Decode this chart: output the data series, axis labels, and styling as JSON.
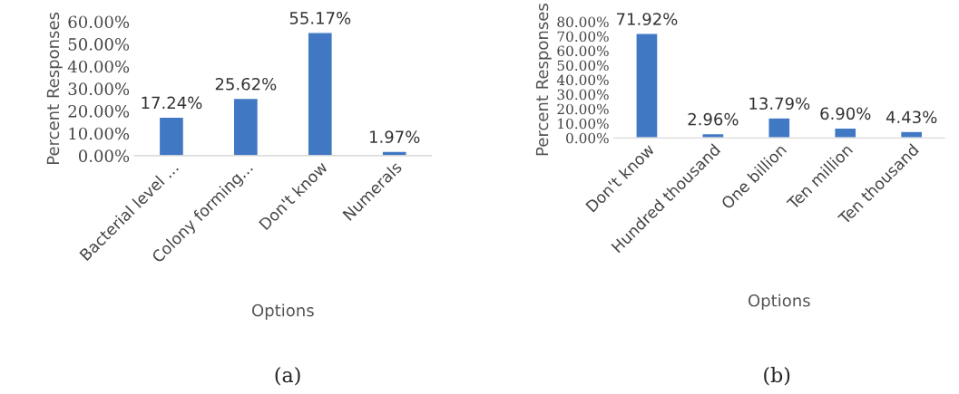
{
  "chart_data": [
    {
      "type": "bar",
      "categories": [
        "Bacterial level ...",
        "Colony forming...",
        "Don't know",
        "Numerals"
      ],
      "values": [
        17.24,
        25.62,
        55.17,
        1.97
      ],
      "color": "#4078c4",
      "value_labels": [
        "17.24%",
        "25.62%",
        "55.17%",
        "1.97%"
      ],
      "xlabel": "Options",
      "ylabel": "Percent Responses",
      "ylim": [
        0,
        60
      ],
      "yticks": [
        {
          "value": 0,
          "label": "0.00%"
        },
        {
          "value": 10,
          "label": "10.00%"
        },
        {
          "value": 20,
          "label": "20.00%"
        },
        {
          "value": 30,
          "label": "30.00%"
        },
        {
          "value": 40,
          "label": "40.00%"
        },
        {
          "value": 50,
          "label": "50.00%"
        },
        {
          "value": 60,
          "label": "60.00%"
        }
      ],
      "grid": false,
      "legend": false,
      "annotations": [
        "(a)"
      ]
    },
    {
      "type": "bar",
      "categories": [
        "Don't know",
        "Hundred thousand",
        "One billion",
        "Ten million",
        "Ten thousand"
      ],
      "values": [
        71.92,
        2.96,
        13.79,
        6.9,
        4.43
      ],
      "color": "#4078c4",
      "value_labels": [
        "71.92%",
        "2.96%",
        "13.79%",
        "6.90%",
        "4.43%"
      ],
      "xlabel": "Options",
      "ylabel": "Percent Responses",
      "ylim": [
        0,
        80
      ],
      "yticks": [
        {
          "value": 0,
          "label": "0.00%"
        },
        {
          "value": 10,
          "label": "10.00%"
        },
        {
          "value": 20,
          "label": "20.00%"
        },
        {
          "value": 30,
          "label": "30.00%"
        },
        {
          "value": 40,
          "label": "40.00%"
        },
        {
          "value": 50,
          "label": "50.00%"
        },
        {
          "value": 60,
          "label": "60.00%"
        },
        {
          "value": 70,
          "label": "70.00%"
        },
        {
          "value": 80,
          "label": "80.00%"
        }
      ],
      "grid": false,
      "legend": false,
      "annotations": [
        "(b)"
      ]
    }
  ]
}
